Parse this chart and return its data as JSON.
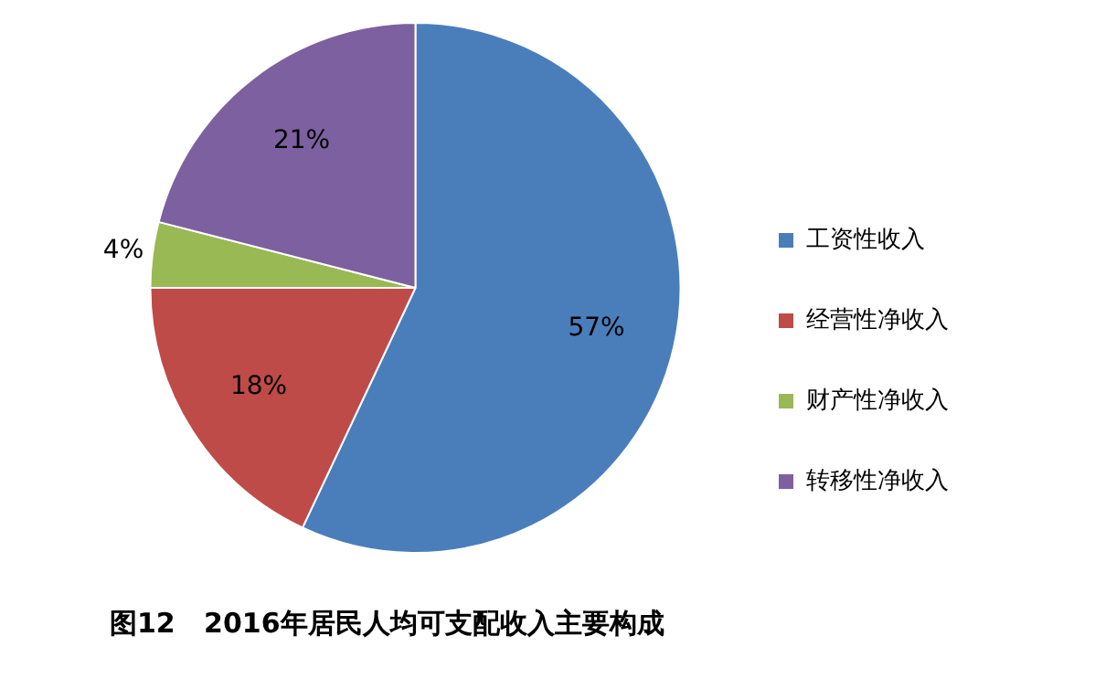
{
  "chart_data": {
    "type": "pie",
    "title": "图12   2016年居民人均可支配收入主要构成",
    "categories": [
      "工资性收入",
      "经营性净收入",
      "财产性净收入",
      "转移性净收入"
    ],
    "values": [
      57,
      18,
      4,
      21
    ],
    "colors": [
      "#4a7ebb",
      "#be4b48",
      "#98b954",
      "#7d60a0"
    ],
    "value_labels": [
      "57%",
      "18%",
      "4%",
      "21%"
    ],
    "legend": "right"
  }
}
